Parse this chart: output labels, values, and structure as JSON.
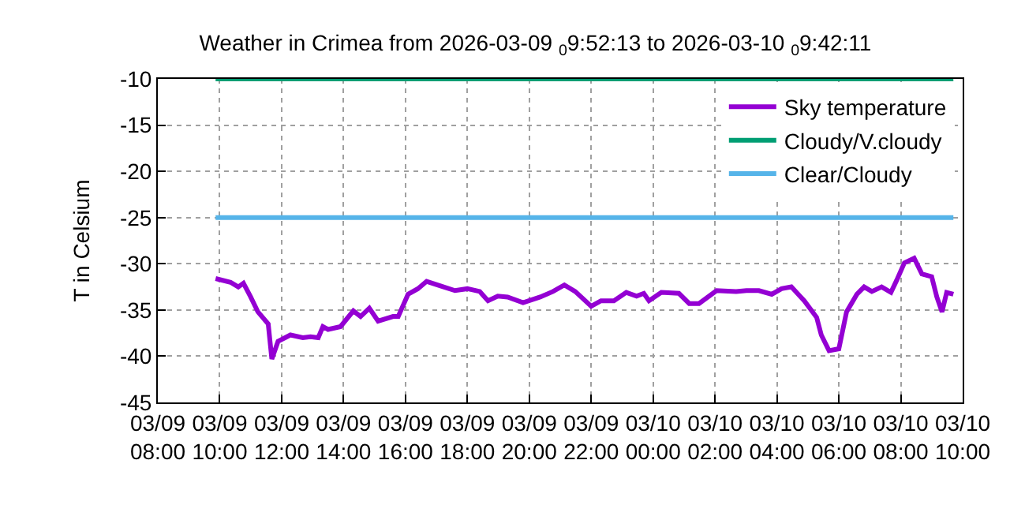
{
  "chart_data": {
    "type": "line",
    "title": "Weather in Crimea from 2026-03-09 $_{0}$9:52:13 to 2026-03-10 $_{0}$9:42:11",
    "ylabel": "T in Celsium",
    "xlim": [
      "2026-03-09T08:00",
      "2026-03-10T10:00"
    ],
    "xticks": [
      {
        "value": "2026-03-09T08:00",
        "label": "03/09\n08:00"
      },
      {
        "value": "2026-03-09T10:00",
        "label": "03/09\n10:00"
      },
      {
        "value": "2026-03-09T12:00",
        "label": "03/09\n12:00"
      },
      {
        "value": "2026-03-09T14:00",
        "label": "03/09\n14:00"
      },
      {
        "value": "2026-03-09T16:00",
        "label": "03/09\n16:00"
      },
      {
        "value": "2026-03-09T18:00",
        "label": "03/09\n18:00"
      },
      {
        "value": "2026-03-09T20:00",
        "label": "03/09\n20:00"
      },
      {
        "value": "2026-03-09T22:00",
        "label": "03/09\n22:00"
      },
      {
        "value": "2026-03-10T00:00",
        "label": "03/10\n00:00"
      },
      {
        "value": "2026-03-10T02:00",
        "label": "03/10\n02:00"
      },
      {
        "value": "2026-03-10T04:00",
        "label": "03/10\n04:00"
      },
      {
        "value": "2026-03-10T06:00",
        "label": "03/10\n06:00"
      },
      {
        "value": "2026-03-10T08:00",
        "label": "03/10\n08:00"
      },
      {
        "value": "2026-03-10T10:00",
        "label": "03/10\n10:00"
      }
    ],
    "ylim": [
      -45,
      -10
    ],
    "yticks": [
      -45,
      -40,
      -35,
      -30,
      -25,
      -20,
      -15,
      -10
    ],
    "grid": true,
    "legend": "top right",
    "line_style": "solid",
    "marker": "none",
    "series": [
      {
        "name": "Sky temperature",
        "color": "#9400d3",
        "x": [
          "2026-03-09T09:52",
          "2026-03-09T10:21",
          "2026-03-09T10:36",
          "2026-03-09T10:46",
          "2026-03-09T11:00",
          "2026-03-09T11:14",
          "2026-03-09T11:34",
          "2026-03-09T11:41",
          "2026-03-09T11:53",
          "2026-03-09T12:17",
          "2026-03-09T12:41",
          "2026-03-09T12:56",
          "2026-03-09T13:11",
          "2026-03-09T13:20",
          "2026-03-09T13:30",
          "2026-03-09T13:54",
          "2026-03-09T14:19",
          "2026-03-09T14:33",
          "2026-03-09T14:50",
          "2026-03-09T15:07",
          "2026-03-09T15:36",
          "2026-03-09T15:46",
          "2026-03-09T16:05",
          "2026-03-09T16:24",
          "2026-03-09T16:41",
          "2026-03-09T17:08",
          "2026-03-09T17:36",
          "2026-03-09T18:00",
          "2026-03-09T18:24",
          "2026-03-09T18:40",
          "2026-03-09T18:59",
          "2026-03-09T19:18",
          "2026-03-09T19:48",
          "2026-03-09T20:21",
          "2026-03-09T20:46",
          "2026-03-09T21:08",
          "2026-03-09T21:29",
          "2026-03-09T22:00",
          "2026-03-09T22:19",
          "2026-03-09T22:44",
          "2026-03-09T23:08",
          "2026-03-09T23:28",
          "2026-03-09T23:42",
          "2026-03-09T23:52",
          "2026-03-10T00:16",
          "2026-03-10T00:50",
          "2026-03-10T01:10",
          "2026-03-10T01:29",
          "2026-03-10T02:03",
          "2026-03-10T02:41",
          "2026-03-10T03:01",
          "2026-03-10T03:25",
          "2026-03-10T03:50",
          "2026-03-10T04:09",
          "2026-03-10T04:28",
          "2026-03-10T04:53",
          "2026-03-10T05:17",
          "2026-03-10T05:26",
          "2026-03-10T05:41",
          "2026-03-10T06:00",
          "2026-03-10T06:15",
          "2026-03-10T06:35",
          "2026-03-10T06:49",
          "2026-03-10T07:04",
          "2026-03-10T07:23",
          "2026-03-10T07:41",
          "2026-03-10T07:52",
          "2026-03-10T08:07",
          "2026-03-10T08:26",
          "2026-03-10T08:41",
          "2026-03-10T09:00",
          "2026-03-10T09:10",
          "2026-03-10T09:20",
          "2026-03-10T09:29",
          "2026-03-10T09:42"
        ],
        "values": [
          -31.6,
          -32.0,
          -32.5,
          -32.1,
          -33.6,
          -35.2,
          -36.5,
          -40.3,
          -38.4,
          -37.7,
          -38.0,
          -37.9,
          -38.0,
          -36.8,
          -37.1,
          -36.8,
          -35.1,
          -35.7,
          -34.8,
          -36.2,
          -35.7,
          -35.7,
          -33.3,
          -32.7,
          -31.9,
          -32.4,
          -32.9,
          -32.7,
          -33.0,
          -34.0,
          -33.5,
          -33.6,
          -34.2,
          -33.6,
          -33.0,
          -32.3,
          -33.0,
          -34.6,
          -34.0,
          -34.0,
          -33.1,
          -33.5,
          -33.2,
          -34.0,
          -33.1,
          -33.2,
          -34.3,
          -34.3,
          -32.9,
          -33.0,
          -32.9,
          -32.9,
          -33.3,
          -32.7,
          -32.5,
          -34.0,
          -35.8,
          -37.7,
          -39.4,
          -39.2,
          -35.2,
          -33.3,
          -32.5,
          -33.0,
          -32.5,
          -33.1,
          -31.8,
          -29.9,
          -29.4,
          -31.1,
          -31.4,
          -33.6,
          -35.2,
          -33.1,
          -33.3
        ]
      },
      {
        "name": "Cloudy/V.cloudy",
        "color": "#009e73",
        "x": [
          "2026-03-09T09:52",
          "2026-03-10T09:42"
        ],
        "values": [
          -10,
          -10
        ]
      },
      {
        "name": "Clear/Cloudy",
        "color": "#56b4e9",
        "x": [
          "2026-03-09T09:52",
          "2026-03-10T09:42"
        ],
        "values": [
          -25,
          -25
        ]
      }
    ]
  }
}
